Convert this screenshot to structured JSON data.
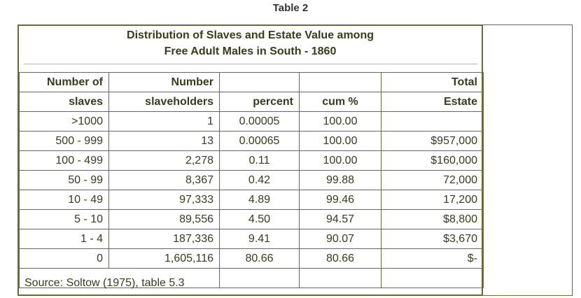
{
  "page_label": "Table 2",
  "title": {
    "line1": "Distribution of Slaves and Estate Value among",
    "line2": "Free Adult Males in South - 1860"
  },
  "header_row1": [
    "Number of",
    "Number",
    "",
    "",
    "Total"
  ],
  "header_row2": [
    "slaves",
    "slaveholders",
    "percent",
    "cum %",
    "Estate"
  ],
  "rows": [
    [
      ">1000",
      "1",
      "0.00005",
      "100.00",
      ""
    ],
    [
      "500 - 999",
      "13",
      "0.00065",
      "100.00",
      "$957,000"
    ],
    [
      "100 - 499",
      "2,278",
      "0.11",
      "100.00",
      "$160,000"
    ],
    [
      "50 - 99",
      "8,367",
      "0.42",
      "99.88",
      "72,000"
    ],
    [
      "10 - 49",
      "97,333",
      "4.89",
      "99.46",
      "17,200"
    ],
    [
      "5 - 10",
      "89,556",
      "4.50",
      "94.57",
      "$8,800"
    ],
    [
      "1 - 4",
      "187,336",
      "9.41",
      "90.07",
      "$3,670"
    ],
    [
      "0",
      "1,605,116",
      "80.66",
      "80.66",
      "$-"
    ]
  ],
  "source": "Source: Soltow (1975), table 5.3"
}
